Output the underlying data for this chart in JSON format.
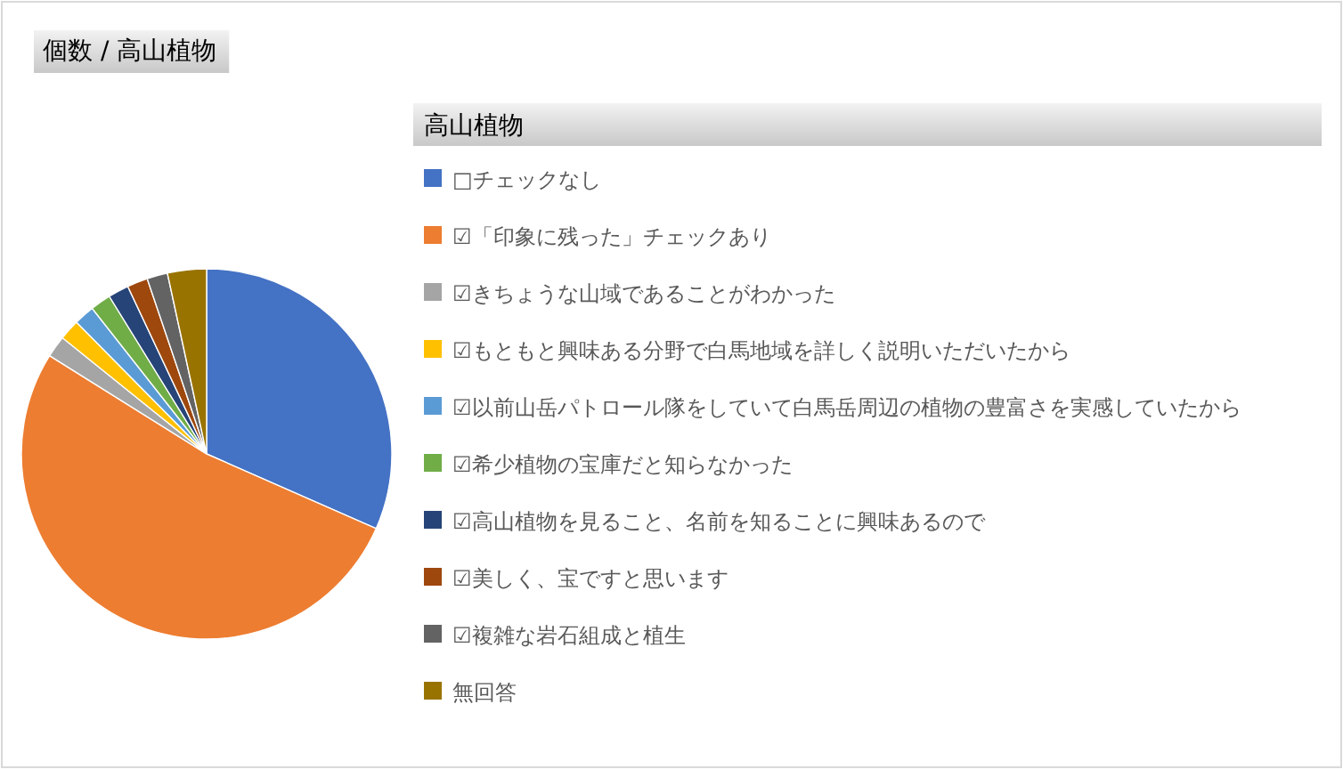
{
  "chart_data": {
    "type": "pie",
    "title": "個数 / 高山植物",
    "legend_title": "高山植物",
    "categories": [
      "□チェックなし",
      "☑「印象に残った」チェックあり",
      "☑きちょうな山域であることがわかった",
      "☑もともと興味ある分野で白馬地域を詳しく説明いただいたから",
      "☑以前山岳パトロール隊をしていて白馬岳周辺の植物の豊富さを実感していたから",
      "☑希少植物の宝庫だと知らなかった",
      "☑高山植物を見ること、名前を知ることに興味あるので",
      "☑美しく、宝ですと思います",
      "☑複雑な岩石組成と植生",
      "無回答"
    ],
    "values": [
      31.6,
      52.3,
      1.9,
      1.8,
      1.8,
      1.8,
      1.8,
      1.8,
      1.8,
      3.4
    ],
    "colors": [
      "#4472c4",
      "#ed7d31",
      "#a5a5a5",
      "#ffc000",
      "#5b9bd5",
      "#70ad47",
      "#264478",
      "#9e480e",
      "#636363",
      "#997300"
    ],
    "legend": "right"
  }
}
